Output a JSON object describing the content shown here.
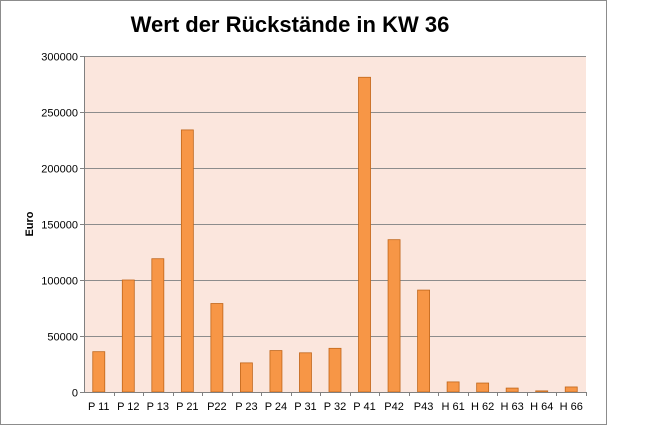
{
  "chart_data": {
    "type": "bar",
    "title": "Wert der Rückstände in KW 36",
    "xlabel": "",
    "ylabel": "Euro",
    "ylim": [
      0,
      300000
    ],
    "yticks": [
      0,
      50000,
      100000,
      150000,
      200000,
      250000,
      300000
    ],
    "grid": true,
    "legend": "none",
    "categories": [
      "P 11",
      "P 12",
      "P 13",
      "P 21",
      "P22",
      "P 23",
      "P 24",
      "P 31",
      "P 32",
      "P 41",
      "P42",
      "P43",
      "H 61",
      "H 62",
      "H 63",
      "H 64",
      "H 66"
    ],
    "values": [
      36000,
      100000,
      119000,
      234000,
      79000,
      26000,
      37000,
      35000,
      39000,
      281000,
      136000,
      91000,
      9000,
      8000,
      3500,
      1000,
      4500
    ],
    "colors": {
      "bar": "#F79646",
      "bar_edge": "#C0661A",
      "plot_bg": "#FBE6DD",
      "grid": "#8C8C8C"
    }
  }
}
